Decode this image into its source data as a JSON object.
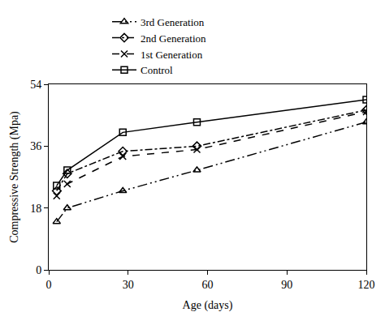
{
  "chart_data": {
    "type": "line",
    "x_label": "Age (days)",
    "y_label": "Compressive Strength (Mpa)",
    "x": [
      3,
      7,
      28,
      56,
      120
    ],
    "series": [
      {
        "name": "3rd Generation",
        "color": "#000000",
        "marker": "triangle",
        "line_style": "dashdotdot",
        "values": [
          14,
          18,
          23,
          29,
          43
        ]
      },
      {
        "name": "2nd Generation",
        "color": "#000000",
        "marker": "diamond",
        "line_style": "dashdot",
        "values": [
          23,
          28,
          34.5,
          36,
          46.5
        ]
      },
      {
        "name": "1st Generation",
        "color": "#000000",
        "marker": "x",
        "line_style": "dash",
        "values": [
          21.5,
          25,
          33,
          35,
          46
        ]
      },
      {
        "name": "Control",
        "color": "#000000",
        "marker": "square",
        "line_style": "solid",
        "values": [
          24.5,
          29,
          40,
          43,
          49.5
        ]
      }
    ],
    "xlim": [
      0,
      120
    ],
    "xticks": [
      0,
      30,
      60,
      90,
      120
    ],
    "ylim": [
      0,
      54
    ],
    "yticks": [
      0,
      18,
      36,
      54
    ],
    "grid": false,
    "legend": "top"
  }
}
